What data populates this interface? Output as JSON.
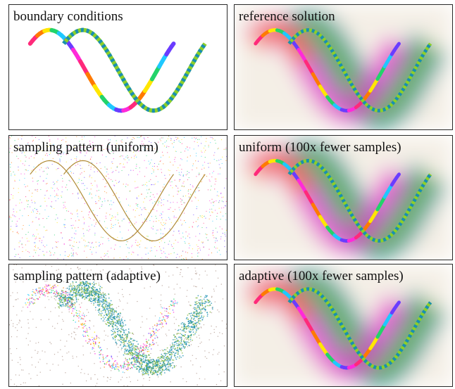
{
  "panels": [
    {
      "label": "boundary conditions"
    },
    {
      "label": "reference solution"
    },
    {
      "label": "sampling pattern (uniform)"
    },
    {
      "label": "uniform (100x fewer samples)"
    },
    {
      "label": "sampling pattern (adaptive)"
    },
    {
      "label": "adaptive (100x fewer samples)"
    }
  ],
  "colors": {
    "border": "#2a2a2a",
    "rainbow": [
      "#ff2a7a",
      "#ff7a00",
      "#ffe600",
      "#22d36a",
      "#1ec8ff",
      "#6a3cff",
      "#ff2ad9"
    ],
    "dashed_a": "#1a8fb0",
    "dashed_b": "#8ccf2a",
    "curve_line": "#b08a35",
    "glow_green": "#7fb53a",
    "glow_teal": "#2a8f95",
    "glow_magenta": "#e23acb"
  }
}
